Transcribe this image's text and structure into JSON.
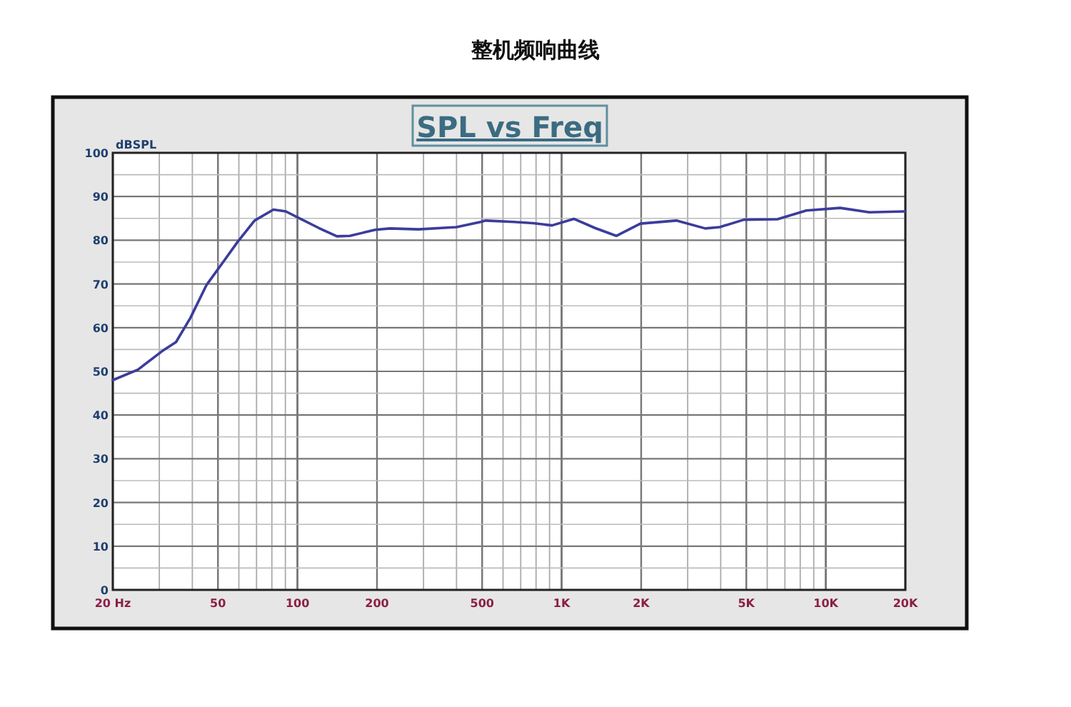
{
  "chart_data": {
    "type": "line",
    "title": "整机频响曲线",
    "subtitle": "SPL vs Freq",
    "ylabel": "dBSPL",
    "log": "x",
    "grid": true,
    "marker": "none",
    "line_style": "solid",
    "xlim": [
      20,
      20000
    ],
    "ylim": [
      0,
      100
    ],
    "xticks": [
      {
        "value": 20,
        "label": "20  Hz"
      },
      50,
      100,
      200,
      500,
      {
        "value": 1000,
        "label": "1K"
      },
      {
        "value": 2000,
        "label": "2K"
      },
      {
        "value": 5000,
        "label": "5K"
      },
      {
        "value": 10000,
        "label": "10K"
      },
      {
        "value": 20000,
        "label": "20K"
      }
    ],
    "yticks": [
      0,
      10,
      20,
      30,
      40,
      50,
      60,
      70,
      80,
      90,
      100
    ],
    "x": [
      20,
      24.9,
      30.7,
      34.7,
      39.3,
      45.3,
      52.6,
      59.3,
      68.8,
      81.1,
      90.3,
      102,
      120.5,
      141,
      158,
      197,
      224,
      287,
      400,
      494,
      516,
      660,
      779,
      920,
      1112,
      1337,
      1610,
      1986,
      2716,
      3497,
      3967,
      4898,
      6557,
      8443,
      11334,
      14608,
      20000
    ],
    "series": [
      {
        "color": "#3c3c9c",
        "values": [
          48,
          50.4,
          54.6,
          56.7,
          62.2,
          69.8,
          75.2,
          79.6,
          84.5,
          87,
          86.6,
          85,
          82.8,
          80.9,
          81,
          82.4,
          82.7,
          82.5,
          83,
          84.2,
          84.5,
          84.2,
          83.9,
          83.4,
          84.9,
          82.8,
          81,
          83.8,
          84.5,
          82.7,
          83,
          84.7,
          84.8,
          86.8,
          87.4,
          86.4,
          86.6
        ]
      }
    ]
  }
}
